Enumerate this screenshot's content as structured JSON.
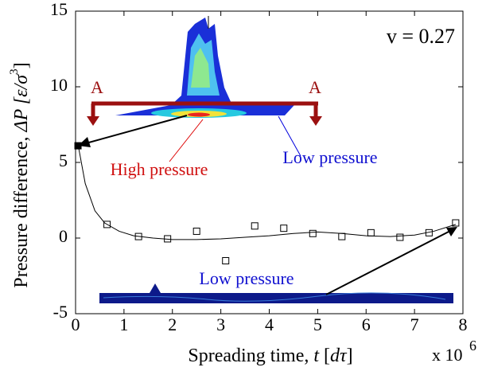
{
  "chart_data": {
    "type": "scatter",
    "annotation": "v = 0.27",
    "xlabel": [
      "Spreading time, ",
      "t",
      " [",
      "dτ",
      "]"
    ],
    "ylabel": [
      "Pressure difference, ",
      "ΔP",
      " [ε/σ",
      "3",
      "]"
    ],
    "x_scale_label": "x 10",
    "x_scale_exponent": "6",
    "xlim": [
      0,
      8
    ],
    "xticks": [
      0,
      1,
      2,
      3,
      4,
      5,
      6,
      7,
      8
    ],
    "ylim": [
      -5,
      15
    ],
    "yticks": [
      -5,
      0,
      5,
      10,
      15
    ],
    "labels": {
      "section_left": "A",
      "section_right": "A",
      "high_pressure": "High pressure",
      "low_pressure_top": "Low pressure",
      "low_pressure_bottom": "Low pressure"
    },
    "series": [
      {
        "marker": "open-square",
        "color": "#000000",
        "x": [
          0.65,
          1.3,
          1.9,
          2.5,
          3.1,
          3.7,
          4.3,
          4.9,
          5.5,
          6.1,
          6.7,
          7.3,
          7.85
        ],
        "values": [
          0.9,
          0.1,
          -0.05,
          0.45,
          -1.5,
          0.8,
          0.65,
          0.3,
          0.1,
          0.35,
          0.05,
          0.35,
          1.0
        ]
      },
      {
        "marker": "filled-square",
        "color": "#000000",
        "x": [
          0.05
        ],
        "values": [
          6.1
        ]
      },
      {
        "marker": "none",
        "color": "#000000",
        "x": [
          0.05,
          0.2,
          0.4,
          0.6,
          0.9,
          1.2,
          1.6,
          2.0,
          2.5,
          3.0,
          3.5,
          4.0,
          4.5,
          5.0,
          5.5,
          6.0,
          6.5,
          7.0,
          7.4,
          7.85
        ],
        "values": [
          6.2,
          3.6,
          1.8,
          1.0,
          0.45,
          0.15,
          0.0,
          -0.1,
          -0.1,
          -0.05,
          0.05,
          0.15,
          0.3,
          0.4,
          0.3,
          0.15,
          0.1,
          0.2,
          0.45,
          0.9
        ]
      }
    ]
  }
}
